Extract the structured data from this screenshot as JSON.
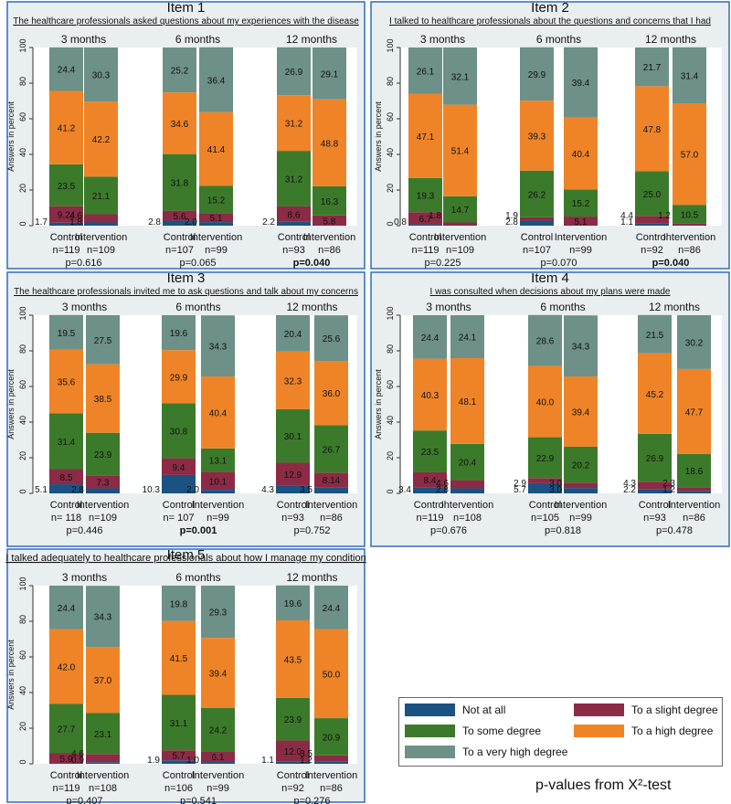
{
  "colors": {
    "not_at_all": "#1b5282",
    "slight": "#8c2b45",
    "some": "#3c7a2b",
    "high": "#ee8427",
    "very_high": "#6d9088",
    "panel_bg": "#e9eef1",
    "panel_border": "#2f6cc0"
  },
  "legend": {
    "not_at_all": "Not at all",
    "slight": "To a slight degree",
    "some": "To some degree",
    "high": "To a high degree",
    "very_high": "To a very high degree"
  },
  "footnote": "p-values from X²-test",
  "chart_data": [
    {
      "type": "bar",
      "title": "Item 1",
      "subtitle": "The healthcare professionals asked questions about my experiences with the disease",
      "ylabel": "Answers in percent",
      "ylim": [
        0,
        100
      ],
      "yticks": [
        "0",
        "20",
        "40",
        "60",
        "80",
        "100"
      ],
      "groups": [
        {
          "label": "3 months",
          "p": "p=0.616",
          "p_bold": false,
          "bars": [
            {
              "arm": "Control",
              "n": "n=119",
              "values": [
                1.7,
                9.24,
                23.5,
                41.2,
                24.4
              ],
              "labels": [
                "1.7",
                "9.24",
                "23.5",
                "41.2",
                "24.4"
              ]
            },
            {
              "arm": "Intervention",
              "n": "n=109",
              "values": [
                1.8,
                4.6,
                21.1,
                42.2,
                30.3
              ],
              "labels": [
                "1.8",
                "4.6",
                "21.1",
                "42.2",
                "30.3"
              ]
            }
          ]
        },
        {
          "label": "6 months",
          "p": "p=0.065",
          "p_bold": false,
          "bars": [
            {
              "arm": "Control",
              "n": "n=107",
              "values": [
                2.8,
                5.6,
                31.8,
                34.6,
                25.2
              ],
              "labels": [
                "2.8",
                "5.6",
                "31.8",
                "34.6",
                "25.2"
              ]
            },
            {
              "arm": "Intervention",
              "n": "n=99",
              "values": [
                2.0,
                5.1,
                15.2,
                41.4,
                36.4
              ],
              "labels": [
                "2.0",
                "5.1",
                "15.2",
                "41.4",
                "36.4"
              ]
            }
          ]
        },
        {
          "label": "12 months",
          "p": "p=0.040",
          "p_bold": true,
          "bars": [
            {
              "arm": "Control",
              "n": "n=93",
              "values": [
                2.2,
                8.6,
                31.2,
                31.2,
                26.9
              ],
              "labels": [
                "2.2",
                "8.6",
                "31.2",
                "31.2",
                "26.9"
              ]
            },
            {
              "arm": "Intervention",
              "n": "n=86",
              "values": [
                0,
                5.8,
                16.3,
                48.8,
                29.1
              ],
              "labels": [
                "",
                "5.8",
                "16.3",
                "48.8",
                "29.1"
              ]
            }
          ]
        }
      ]
    },
    {
      "type": "bar",
      "title": "Item 2",
      "subtitle": "I talked to healthcare professionals about the questions and concerns that I had",
      "ylabel": "Answers in percent",
      "ylim": [
        0,
        100
      ],
      "yticks": [
        "0",
        "20",
        "40",
        "60",
        "80",
        "100"
      ],
      "groups": [
        {
          "label": "3 months",
          "p": "p=0.225",
          "p_bold": false,
          "bars": [
            {
              "arm": "Control",
              "n": "n=119",
              "values": [
                0.8,
                6.7,
                19.3,
                47.1,
                26.1
              ],
              "labels": [
                "0.8",
                "6.7",
                "19.3",
                "47.1",
                "26.1"
              ]
            },
            {
              "arm": "Intervention",
              "n": "n=109",
              "values": [
                0,
                1.8,
                14.7,
                51.4,
                32.1
              ],
              "labels": [
                "",
                "1.8",
                "14.7",
                "51.4",
                "32.1"
              ]
            }
          ]
        },
        {
          "label": "6 months",
          "p": "p=0.070",
          "p_bold": false,
          "bars": [
            {
              "arm": "Control",
              "n": "n=107",
              "values": [
                2.8,
                1.9,
                26.2,
                39.3,
                29.9
              ],
              "labels": [
                "2.8",
                "1.9",
                "26.2",
                "39.3",
                "29.9"
              ]
            },
            {
              "arm": "Intervention",
              "n": "n=99",
              "values": [
                0,
                5.1,
                15.2,
                40.4,
                39.4
              ],
              "labels": [
                "",
                "5.1",
                "15.2",
                "40.4",
                "39.4"
              ]
            }
          ]
        },
        {
          "label": "12 months",
          "p": "p=0.040",
          "p_bold": true,
          "bars": [
            {
              "arm": "Control",
              "n": "n=92",
              "values": [
                1.1,
                4.4,
                25.0,
                47.8,
                21.7
              ],
              "labels": [
                "1.1",
                "4.4",
                "25.0",
                "47.8",
                "21.7"
              ]
            },
            {
              "arm": "Intervention",
              "n": "n=86",
              "values": [
                0,
                1.2,
                10.5,
                57.0,
                31.4
              ],
              "labels": [
                "",
                "1.2",
                "10.5",
                "57.0",
                "31.4"
              ]
            }
          ]
        }
      ]
    },
    {
      "type": "bar",
      "title": "Item 3",
      "subtitle": "The healthcare professionals invited me to ask questions and talk about my concerns",
      "ylabel": "Answers in percent",
      "ylim": [
        0,
        100
      ],
      "yticks": [
        "0",
        "20",
        "40",
        "60",
        "80",
        "100"
      ],
      "groups": [
        {
          "label": "3 months",
          "p": "p=0.446",
          "p_bold": false,
          "bars": [
            {
              "arm": "Control",
              "n": "n= 118",
              "values": [
                5.1,
                8.5,
                31.4,
                35.6,
                19.5
              ],
              "labels": [
                "5.1",
                "8.5",
                "31.4",
                "35.6",
                "19.5"
              ]
            },
            {
              "arm": "Intervention",
              "n": "n=109",
              "values": [
                2.8,
                7.3,
                23.9,
                38.5,
                27.5
              ],
              "labels": [
                "2.8",
                "7.3",
                "23.9",
                "38.5",
                "27.5"
              ]
            }
          ]
        },
        {
          "label": "6 months",
          "p": "p=0.001",
          "p_bold": true,
          "bars": [
            {
              "arm": "Control",
              "n": "n= 107",
              "values": [
                10.3,
                9.4,
                30.8,
                29.9,
                19.6
              ],
              "labels": [
                "10.3",
                "9.4",
                "30.8",
                "29.9",
                "19.6"
              ]
            },
            {
              "arm": "Intervention",
              "n": "n=99",
              "values": [
                2.0,
                10.1,
                13.1,
                40.4,
                34.3
              ],
              "labels": [
                "2.0",
                "10.1",
                "13.1",
                "40.4",
                "34.3"
              ]
            }
          ]
        },
        {
          "label": "12 months",
          "p": "p=0.752",
          "p_bold": false,
          "bars": [
            {
              "arm": "Control",
              "n": "n=93",
              "values": [
                4.3,
                12.9,
                30.1,
                32.3,
                20.4
              ],
              "labels": [
                "4.3",
                "12.9",
                "30.1",
                "32.3",
                "20.4"
              ]
            },
            {
              "arm": "Intervention",
              "n": "n=86",
              "values": [
                3.5,
                8.14,
                26.7,
                36.0,
                25.6
              ],
              "labels": [
                "3.5",
                "8.14",
                "26.7",
                "36.0",
                "25.6"
              ]
            }
          ]
        }
      ]
    },
    {
      "type": "bar",
      "title": "Item 4",
      "subtitle": "I was consulted when decisions about my plans were made",
      "ylabel": "Answers in percent",
      "ylim": [
        0,
        100
      ],
      "yticks": [
        "0",
        "20",
        "40",
        "60",
        "80",
        "100"
      ],
      "groups": [
        {
          "label": "3 months",
          "p": "p=0.676",
          "p_bold": false,
          "bars": [
            {
              "arm": "Control",
              "n": "n=119",
              "values": [
                3.4,
                8.4,
                23.5,
                40.3,
                24.4
              ],
              "labels": [
                "3.4",
                "8.4",
                "23.5",
                "40.3",
                "24.4"
              ]
            },
            {
              "arm": "Intervention",
              "n": "n=108",
              "values": [
                2.8,
                4.6,
                20.4,
                48.1,
                24.1
              ],
              "labels": [
                "2.8",
                "4.6",
                "20.4",
                "48.1",
                "24.1"
              ]
            }
          ]
        },
        {
          "label": "6 months",
          "p": "p=0.818",
          "p_bold": false,
          "bars": [
            {
              "arm": "Control",
              "n": "n=105",
              "values": [
                5.7,
                2.9,
                22.9,
                40.0,
                28.6
              ],
              "labels": [
                "5.7",
                "2.9",
                "22.9",
                "40.0",
                "28.6"
              ]
            },
            {
              "arm": "Intervention",
              "n": "n=99",
              "values": [
                3.0,
                3.0,
                20.2,
                39.4,
                34.3
              ],
              "labels": [
                "3.0",
                "3.0",
                "20.2",
                "39.4",
                "34.3"
              ]
            }
          ]
        },
        {
          "label": "12 months",
          "p": "p=0.478",
          "p_bold": false,
          "bars": [
            {
              "arm": "Control",
              "n": "n=93",
              "values": [
                2.2,
                4.3,
                26.9,
                45.2,
                21.5
              ],
              "labels": [
                "2.2",
                "4.3",
                "26.9",
                "45.2",
                "21.5"
              ]
            },
            {
              "arm": "Intervention",
              "n": "n=86",
              "values": [
                1.2,
                2.3,
                18.6,
                47.7,
                30.2
              ],
              "labels": [
                "1.2",
                "2.3",
                "18.6",
                "47.7",
                "30.2"
              ]
            }
          ]
        }
      ]
    },
    {
      "type": "bar",
      "title": "Item 5",
      "subtitle": "I talked adequately to healthcare professionals about how I manage my condition",
      "ylabel": "Answers in percent",
      "ylim": [
        0,
        100
      ],
      "yticks": [
        "0",
        "20",
        "40",
        "60",
        "80",
        "100"
      ],
      "groups": [
        {
          "label": "3 months",
          "p": "p=0.407",
          "p_bold": false,
          "bars": [
            {
              "arm": "Control",
              "n": "n=119",
              "values": [
                0,
                5.9,
                27.7,
                42.0,
                24.4
              ],
              "labels": [
                "",
                "5.9",
                "27.7",
                "42.0",
                "24.4"
              ]
            },
            {
              "arm": "Intervention",
              "n": "n=108",
              "values": [
                0.9,
                4.6,
                23.1,
                37.0,
                34.3
              ],
              "labels": [
                "0.9",
                "4.6",
                "23.1",
                "37.0",
                "34.3"
              ]
            }
          ]
        },
        {
          "label": "6 months",
          "p": "p=0.541",
          "p_bold": false,
          "bars": [
            {
              "arm": "Control",
              "n": "n=106",
              "values": [
                1.9,
                5.7,
                31.1,
                41.5,
                19.8
              ],
              "labels": [
                "1.9",
                "5.7",
                "31.1",
                "41.5",
                "19.8"
              ]
            },
            {
              "arm": "Intervention",
              "n": "n=99",
              "values": [
                1.0,
                6.1,
                24.2,
                39.4,
                29.3
              ],
              "labels": [
                "1.0",
                "6.1",
                "24.2",
                "39.4",
                "29.3"
              ]
            }
          ]
        },
        {
          "label": "12 months",
          "p": "p=0.276",
          "p_bold": false,
          "bars": [
            {
              "arm": "Control",
              "n": "n=92",
              "values": [
                1.1,
                12.0,
                23.9,
                43.5,
                19.6
              ],
              "labels": [
                "1.1",
                "12.0",
                "23.9",
                "43.5",
                "19.6"
              ]
            },
            {
              "arm": "Intervention",
              "n": "n=86",
              "values": [
                1.2,
                3.5,
                20.9,
                50.0,
                24.4
              ],
              "labels": [
                "1.2",
                "3.5",
                "20.9",
                "50.0",
                "24.4"
              ]
            }
          ]
        }
      ]
    }
  ]
}
